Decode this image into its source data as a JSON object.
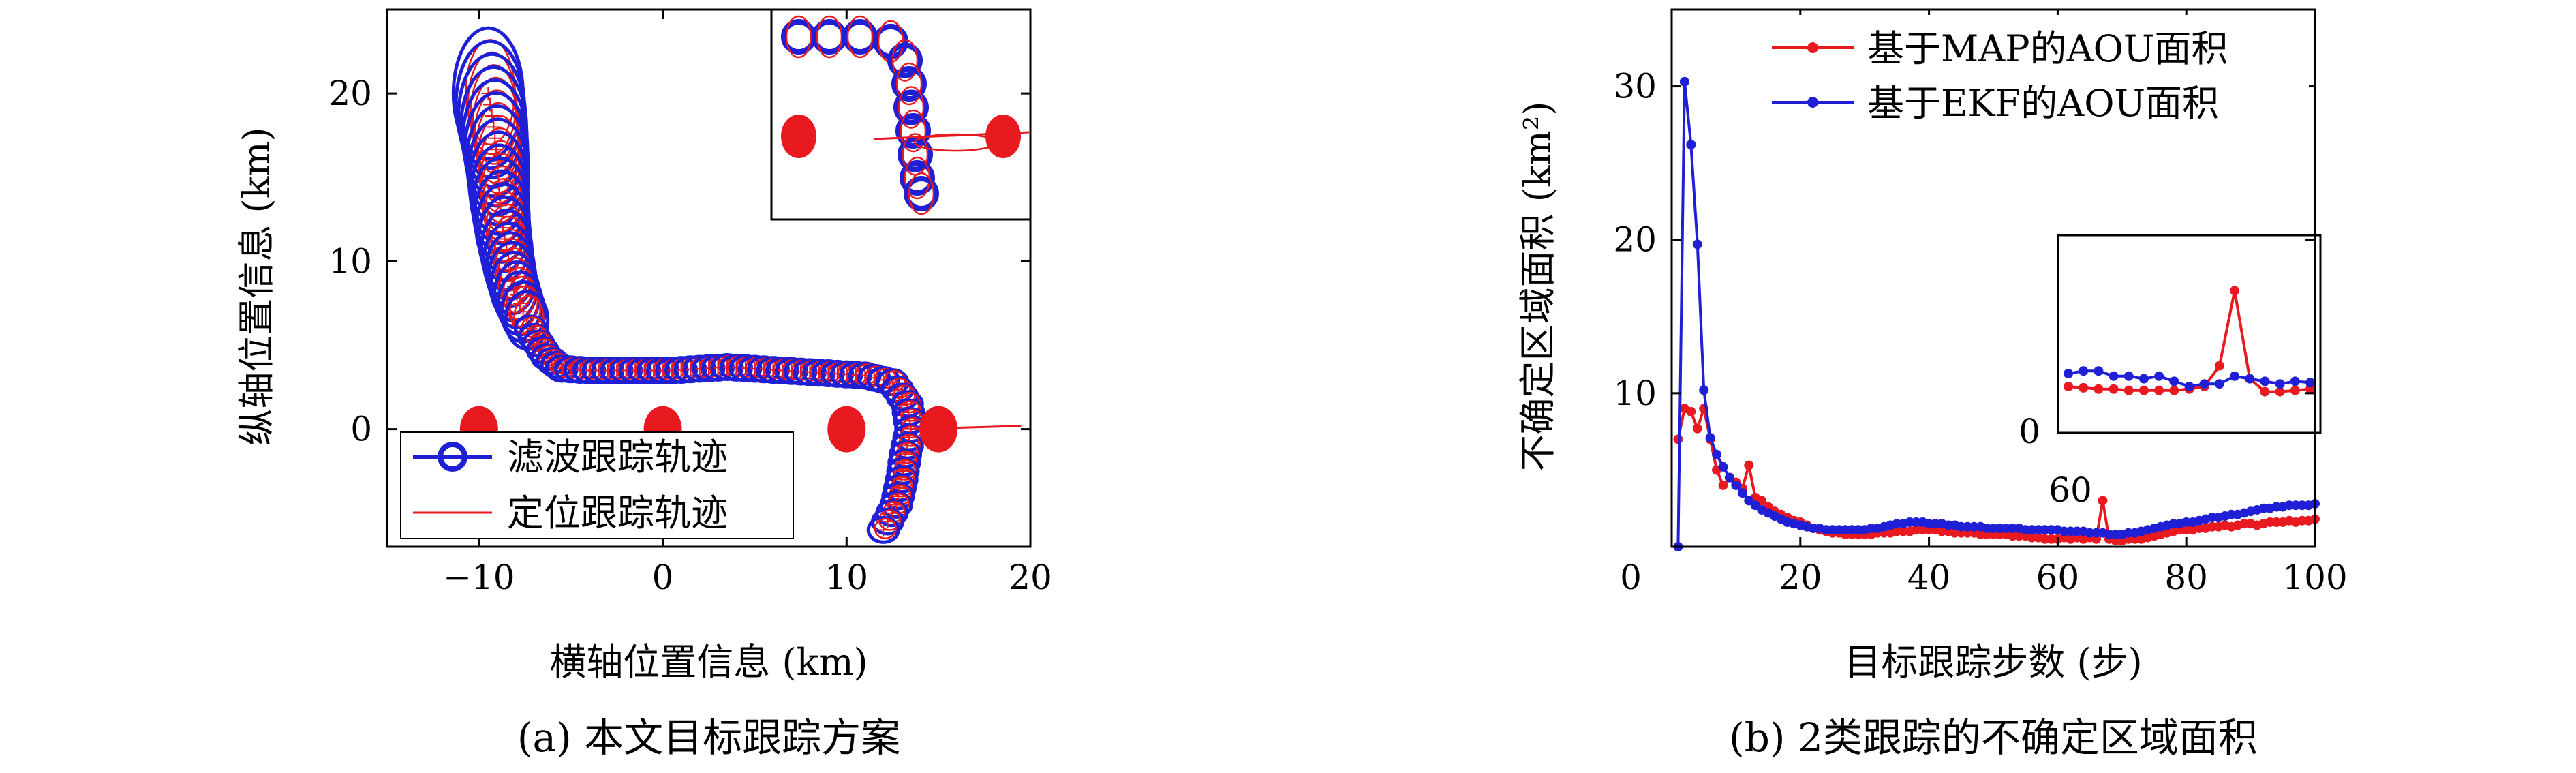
{
  "panel_a": {
    "caption": "(a) 本文目标跟踪方案",
    "chart_data": {
      "type": "scatter",
      "xlabel": "横轴位置信息 (km)",
      "ylabel": "纵轴位置信息 (km)",
      "xlim": [
        -15,
        20
      ],
      "ylim": [
        -7,
        25
      ],
      "xticks": [
        "-10",
        "0",
        "10",
        "20"
      ],
      "yticks": [
        "0",
        "10",
        "20"
      ],
      "legend_position": "bottom-left",
      "legend": [
        {
          "label": "滤波跟踪轨迹",
          "color": "#1f1fd6"
        },
        {
          "label": "定位跟踪轨迹",
          "color": "#e8191f"
        }
      ],
      "colors": {
        "filter": "#1f1fd6",
        "locate": "#e8191f"
      },
      "sensors": [
        {
          "x": -10,
          "y": 0
        },
        {
          "x": 0,
          "y": 0
        },
        {
          "x": 10,
          "y": 0
        },
        {
          "x": 15,
          "y": 0
        }
      ],
      "trajectory": [
        [
          -9.5,
          20
        ],
        [
          -9.2,
          18
        ],
        [
          -9,
          16
        ],
        [
          -8.9,
          14
        ],
        [
          -8.7,
          12
        ],
        [
          -8.4,
          10
        ],
        [
          -8.1,
          8.5
        ],
        [
          -7.6,
          7
        ],
        [
          -7,
          5.5
        ],
        [
          -6.3,
          4.3
        ],
        [
          -5.5,
          3.6
        ],
        [
          -4,
          3.5
        ],
        [
          -2.5,
          3.5
        ],
        [
          -1,
          3.5
        ],
        [
          0.5,
          3.5
        ],
        [
          2,
          3.6
        ],
        [
          3.5,
          3.7
        ],
        [
          5,
          3.6
        ],
        [
          6.5,
          3.5
        ],
        [
          8,
          3.4
        ],
        [
          9.5,
          3.3
        ],
        [
          11,
          3.2
        ],
        [
          12.5,
          2.8
        ],
        [
          13.3,
          1.5
        ],
        [
          13.5,
          0
        ],
        [
          13.2,
          -1.5
        ],
        [
          13,
          -3
        ],
        [
          12.7,
          -4.5
        ],
        [
          12,
          -6
        ]
      ],
      "inset": {
        "sensors": [
          {
            "x": 0
          },
          {
            "x": 1
          }
        ],
        "trajectory": [
          [
            0,
            1
          ],
          [
            0.15,
            1
          ],
          [
            0.3,
            1
          ],
          [
            0.45,
            0.97
          ],
          [
            0.52,
            0.85
          ],
          [
            0.54,
            0.7
          ],
          [
            0.55,
            0.55
          ],
          [
            0.56,
            0.4
          ],
          [
            0.57,
            0.25
          ],
          [
            0.58,
            0.1
          ],
          [
            0.6,
            0
          ]
        ]
      }
    }
  },
  "panel_b": {
    "caption": "(b) 2类跟踪的不确定区域面积",
    "chart_data": {
      "type": "line",
      "xlabel": "目标跟踪步数 (步)",
      "ylabel": "不确定区域面积 (km²)",
      "xlim": [
        0,
        100
      ],
      "ylim": [
        0,
        35
      ],
      "xticks": [
        "0",
        "20",
        "40",
        "60",
        "80",
        "100"
      ],
      "yticks": [
        "10",
        "20",
        "30"
      ],
      "legend_position": "top-right",
      "series": [
        {
          "name": "基于MAP的AOU面积",
          "color": "#e8191f",
          "x": [
            1,
            2,
            3,
            4,
            5,
            6,
            7,
            8,
            9,
            10,
            11,
            12,
            13,
            14,
            15,
            16,
            17,
            18,
            19,
            20,
            21,
            22,
            23,
            24,
            25,
            26,
            27,
            28,
            29,
            30,
            31,
            32,
            33,
            34,
            35,
            36,
            37,
            38,
            39,
            40,
            41,
            42,
            43,
            44,
            45,
            46,
            47,
            48,
            49,
            50,
            51,
            52,
            53,
            54,
            55,
            56,
            57,
            58,
            59,
            60,
            61,
            62,
            63,
            64,
            65,
            66,
            67,
            68,
            69,
            70,
            71,
            72,
            73,
            74,
            75,
            76,
            77,
            78,
            79,
            80,
            81,
            82,
            83,
            84,
            85,
            86,
            87,
            88,
            89,
            90,
            91,
            92,
            93,
            94,
            95,
            96,
            97,
            98,
            99,
            100
          ],
          "y": [
            7,
            9,
            8.8,
            7.7,
            9,
            7,
            5,
            4,
            4.5,
            4.2,
            3.8,
            5.3,
            3.2,
            3,
            2.6,
            2.3,
            2.1,
            1.9,
            1.7,
            1.6,
            1.4,
            1.2,
            1.1,
            1.0,
            0.9,
            0.9,
            0.8,
            0.8,
            0.8,
            0.8,
            0.8,
            0.9,
            0.9,
            0.9,
            1.0,
            1.0,
            1.0,
            1.1,
            1.1,
            1.1,
            1.1,
            1.0,
            1.0,
            0.9,
            0.9,
            0.9,
            0.9,
            0.8,
            0.8,
            0.8,
            0.8,
            0.8,
            0.7,
            0.7,
            0.7,
            0.6,
            0.6,
            0.5,
            0.5,
            0.5,
            0.6,
            0.5,
            0.6,
            0.5,
            0.6,
            0.5,
            3.0,
            0.5,
            0.4,
            0.4,
            0.5,
            0.5,
            0.5,
            0.6,
            0.7,
            0.8,
            0.9,
            1.0,
            1.1,
            1.1,
            1.1,
            1.2,
            1.2,
            1.3,
            1.3,
            1.4,
            1.3,
            1.4,
            1.5,
            1.5,
            1.4,
            1.5,
            1.6,
            1.6,
            1.6,
            1.7,
            1.6,
            1.7,
            1.7,
            1.8
          ]
        },
        {
          "name": "基于EKF的AOU面积",
          "color": "#1f1fd6",
          "x": [
            1,
            2,
            3,
            4,
            5,
            6,
            7,
            8,
            9,
            10,
            11,
            12,
            13,
            14,
            15,
            16,
            17,
            18,
            19,
            20,
            21,
            22,
            23,
            24,
            25,
            26,
            27,
            28,
            29,
            30,
            31,
            32,
            33,
            34,
            35,
            36,
            37,
            38,
            39,
            40,
            41,
            42,
            43,
            44,
            45,
            46,
            47,
            48,
            49,
            50,
            51,
            52,
            53,
            54,
            55,
            56,
            57,
            58,
            59,
            60,
            61,
            62,
            63,
            64,
            65,
            66,
            67,
            68,
            69,
            70,
            71,
            72,
            73,
            74,
            75,
            76,
            77,
            78,
            79,
            80,
            81,
            82,
            83,
            84,
            85,
            86,
            87,
            88,
            89,
            90,
            91,
            92,
            93,
            94,
            95,
            96,
            97,
            98,
            99,
            100
          ],
          "y": [
            0,
            30.3,
            26.2,
            19.7,
            10.2,
            7.1,
            6.0,
            5.2,
            4.5,
            4.0,
            3.5,
            3.0,
            2.7,
            2.4,
            2.2,
            2.0,
            1.8,
            1.6,
            1.5,
            1.4,
            1.3,
            1.2,
            1.2,
            1.1,
            1.1,
            1.1,
            1.1,
            1.1,
            1.1,
            1.1,
            1.2,
            1.2,
            1.3,
            1.4,
            1.5,
            1.5,
            1.6,
            1.6,
            1.6,
            1.5,
            1.5,
            1.5,
            1.4,
            1.4,
            1.3,
            1.3,
            1.3,
            1.3,
            1.2,
            1.2,
            1.2,
            1.2,
            1.2,
            1.2,
            1.1,
            1.1,
            1.1,
            1.1,
            1.1,
            1.1,
            1.0,
            1.0,
            1.0,
            1.0,
            0.9,
            0.9,
            0.9,
            0.8,
            0.8,
            0.8,
            0.9,
            0.9,
            1.0,
            1.1,
            1.2,
            1.3,
            1.4,
            1.5,
            1.5,
            1.6,
            1.6,
            1.7,
            1.8,
            1.9,
            1.9,
            2.0,
            2.1,
            2.1,
            2.2,
            2.3,
            2.4,
            2.5,
            2.5,
            2.6,
            2.6,
            2.7,
            2.7,
            2.7,
            2.7,
            2.8
          ]
        }
      ],
      "inset": {
        "xlabel": "60",
        "ylabel": "0",
        "map": [
          1.0,
          0.95,
          0.9,
          0.9,
          0.85,
          0.85,
          0.85,
          0.85,
          0.9,
          1.0,
          1.8,
          4.7,
          1.3,
          0.8,
          0.8,
          0.85,
          0.9
        ],
        "ekf": [
          1.5,
          1.6,
          1.6,
          1.4,
          1.4,
          1.3,
          1.4,
          1.2,
          1.0,
          1.1,
          1.1,
          1.4,
          1.3,
          1.2,
          1.1,
          1.2,
          1.15
        ]
      }
    }
  }
}
